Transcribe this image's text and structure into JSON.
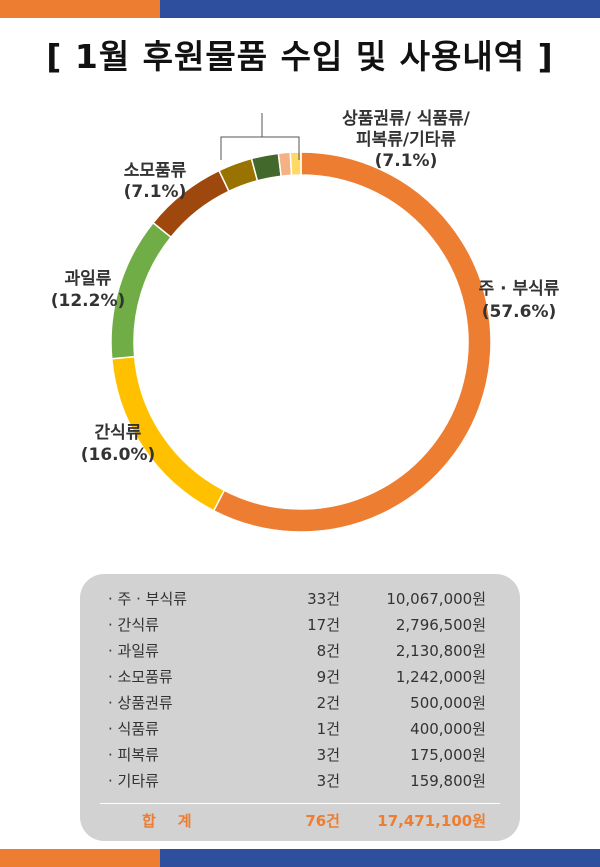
{
  "title": "[ 1월 후원물품 수입 및 사용내역 ]",
  "colors": {
    "band_orange": "#ed7d31",
    "band_blue": "#2e4f9e",
    "total_text": "#ed7d31",
    "panel": "#d2d2d2"
  },
  "chart_data": {
    "type": "pie",
    "variant": "donut",
    "slices": [
      {
        "name": "주 · 부식류",
        "percent": 57.6,
        "color": "#ed7d31"
      },
      {
        "name": "간식류",
        "percent": 16.0,
        "color": "#ffc000"
      },
      {
        "name": "과일류",
        "percent": 12.2,
        "color": "#70ad47"
      },
      {
        "name": "소모품류",
        "percent": 7.1,
        "color": "#9e480e"
      },
      {
        "name": "상품권류",
        "percent": 2.9,
        "color": "#997300"
      },
      {
        "name": "식품류",
        "percent": 2.3,
        "color": "#43682b"
      },
      {
        "name": "피복류",
        "percent": 1.0,
        "color": "#f4b183"
      },
      {
        "name": "기타류",
        "percent": 0.9,
        "color": "#ffd966"
      }
    ],
    "labels": {
      "main": {
        "name": "주 · 부식류",
        "pct": "(57.6%)"
      },
      "snack": {
        "name": "간식류",
        "pct": "(16.0%)"
      },
      "fruit": {
        "name": "과일류",
        "pct": "(12.2%)"
      },
      "supplies": {
        "name": "소모품류",
        "pct": "(7.1%)"
      },
      "group": {
        "line1": "상품권류/ 식품류/",
        "line2": "피복류/기타류",
        "pct": "(7.1%)"
      }
    }
  },
  "table": {
    "rows": [
      {
        "name": "· 주 · 부식류",
        "count": "33건",
        "amount": "10,067,000원"
      },
      {
        "name": "· 간식류",
        "count": "17건",
        "amount": "2,796,500원"
      },
      {
        "name": "· 과일류",
        "count": "8건",
        "amount": "2,130,800원"
      },
      {
        "name": "· 소모품류",
        "count": "9건",
        "amount": "1,242,000원"
      },
      {
        "name": "· 상품권류",
        "count": "2건",
        "amount": "500,000원"
      },
      {
        "name": "· 식품류",
        "count": "1건",
        "amount": "400,000원"
      },
      {
        "name": "· 피복류",
        "count": "3건",
        "amount": "175,000원"
      },
      {
        "name": "· 기타류",
        "count": "3건",
        "amount": "159,800원"
      }
    ],
    "total": {
      "name": "합계",
      "count": "76건",
      "amount": "17,471,100원"
    }
  }
}
